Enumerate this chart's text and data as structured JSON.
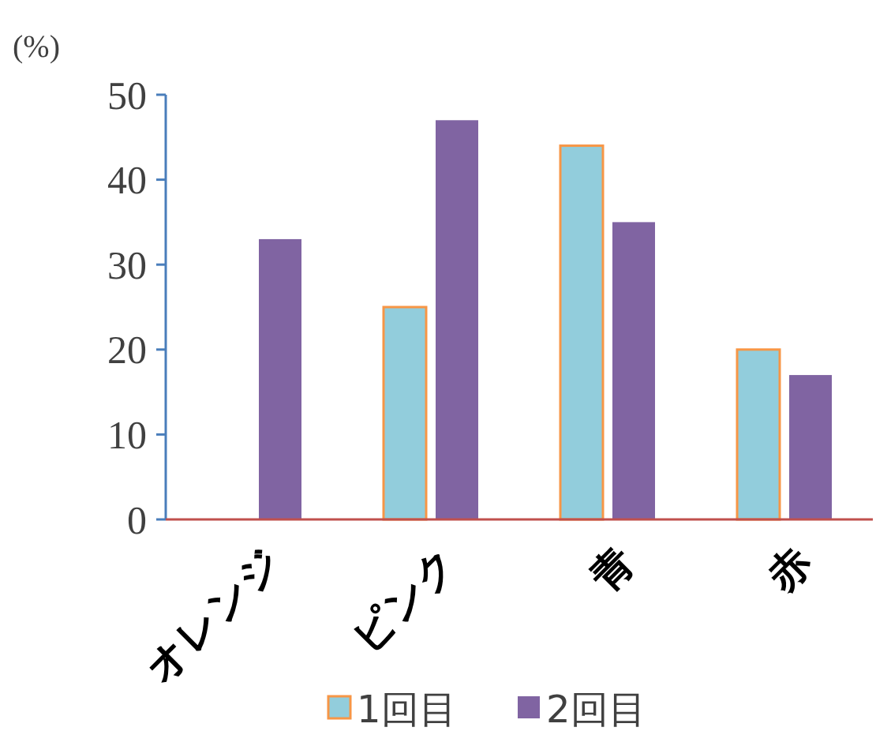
{
  "chart_data": {
    "type": "bar",
    "ylabel": "(%)",
    "categories": [
      "オレンジ",
      "ピンク",
      "青",
      "赤"
    ],
    "series": [
      {
        "name": "1回目",
        "color": "#92cddc",
        "values": [
          0,
          25,
          44,
          20
        ]
      },
      {
        "name": "2回目",
        "color": "#8064a2",
        "values": [
          33,
          47,
          35,
          17
        ]
      }
    ],
    "ylim": [
      0,
      50
    ],
    "yticks": [
      0,
      10,
      20,
      30,
      40,
      50
    ],
    "grid": false,
    "legend": "bottom"
  }
}
